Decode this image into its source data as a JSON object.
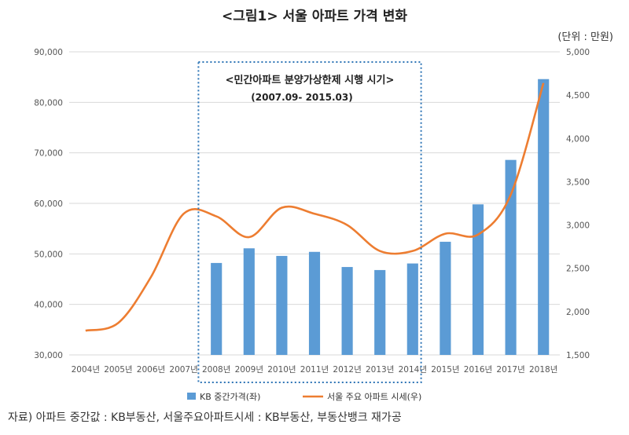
{
  "figure": {
    "title": "<그림1> 서울 아파트 가격 변화",
    "unit": "(단위 : 만원)",
    "source": "자료) 아파트 중간값 : KB부동산, 서울주요아파트시세 : KB부동산, 부동산뱅크 재가공"
  },
  "annotation": {
    "line1": "<민간아파트 분양가상한제 시행 시기>",
    "line2": "(2007.09- 2015.03)"
  },
  "colors": {
    "bar": "#5b9bd5",
    "line": "#ed7d31",
    "highlight_border": "#2e75b6"
  },
  "chart_data": {
    "type": "bar",
    "categories": [
      "2004년",
      "2005년",
      "2006년",
      "2007년",
      "2008년",
      "2009년",
      "2010년",
      "2011년",
      "2012년",
      "2013년",
      "2014년",
      "2015년",
      "2016년",
      "2017년",
      "2018년"
    ],
    "series": [
      {
        "name": "KB 중간가격(좌)",
        "type": "bar",
        "axis": "left",
        "values": [
          null,
          null,
          null,
          null,
          48200,
          51100,
          49600,
          50400,
          47400,
          46800,
          48100,
          52400,
          59800,
          68600,
          84600
        ]
      },
      {
        "name": "서울 주요 아파트 시세(우)",
        "type": "line",
        "axis": "right",
        "values": [
          1780,
          1870,
          2400,
          3130,
          3100,
          2860,
          3200,
          3130,
          3000,
          2700,
          2700,
          2900,
          2890,
          3350,
          4640
        ]
      }
    ],
    "y_left": {
      "ticks": [
        "30,000",
        "40,000",
        "50,000",
        "60,000",
        "70,000",
        "80,000",
        "90,000"
      ],
      "lim": [
        30000,
        90000
      ]
    },
    "y_right": {
      "ticks": [
        "1,500",
        "2,000",
        "2,500",
        "3,000",
        "3,500",
        "4,000",
        "4,500",
        "5,000"
      ],
      "lim": [
        1500,
        5000
      ]
    },
    "grid": true,
    "legend_position": "bottom",
    "highlight_range": [
      "2008년",
      "2014년"
    ]
  }
}
